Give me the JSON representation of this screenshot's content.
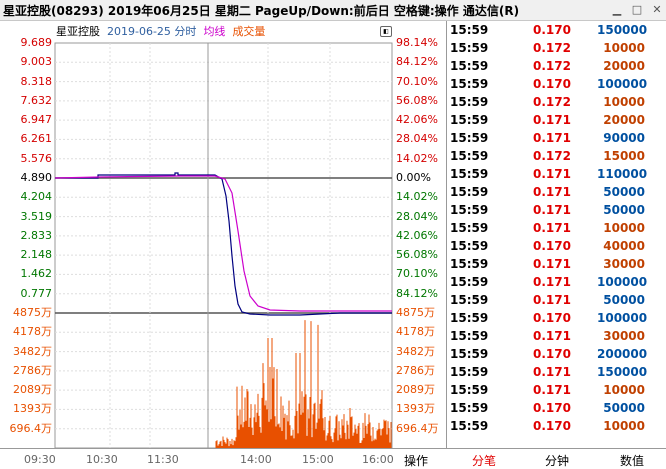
{
  "window": {
    "title": "星亚控股(08293) 2019年06月25日 星期二 PageUp/Down:前后日 空格键:操作 通达信(R)",
    "minimize": "▁",
    "maximize": "□",
    "close": "✕"
  },
  "chart_header": {
    "name": "星亚控股",
    "date": "2019-06-25 分时",
    "avg_label": "均线",
    "vol_label": "成交量",
    "toggle": "◧"
  },
  "colors": {
    "up": "#d40000",
    "down": "#007700",
    "price_line": "#000080",
    "avg_line": "#cc00cc",
    "volume": "#e85000",
    "buy_color": "#0050a0",
    "sell_color": "#c04000"
  },
  "price_axis": {
    "left": [
      "9.689",
      "9.003",
      "8.318",
      "7.632",
      "6.947",
      "6.261",
      "5.576",
      "4.890",
      "4.204",
      "3.519",
      "2.833",
      "2.148",
      "1.462",
      "0.777"
    ],
    "right": [
      "98.14%",
      "84.12%",
      "70.10%",
      "56.08%",
      "42.06%",
      "28.04%",
      "14.02%",
      "0.00%",
      "14.02%",
      "28.04%",
      "42.06%",
      "56.08%",
      "70.10%",
      "84.12%"
    ]
  },
  "volume_axis": [
    "4875万",
    "4178万",
    "3482万",
    "2786万",
    "2089万",
    "1393万",
    "696.4万"
  ],
  "time_axis": [
    "09:30",
    "10:30",
    "11:30",
    "14:00",
    "15:00",
    "16:00"
  ],
  "ticks": [
    {
      "time": "15:59",
      "price": "0.170",
      "vol": "150000",
      "side": "buy"
    },
    {
      "time": "15:59",
      "price": "0.172",
      "vol": "10000",
      "side": "sell"
    },
    {
      "time": "15:59",
      "price": "0.172",
      "vol": "20000",
      "side": "sell"
    },
    {
      "time": "15:59",
      "price": "0.170",
      "vol": "100000",
      "side": "buy"
    },
    {
      "time": "15:59",
      "price": "0.172",
      "vol": "10000",
      "side": "sell"
    },
    {
      "time": "15:59",
      "price": "0.171",
      "vol": "20000",
      "side": "sell"
    },
    {
      "time": "15:59",
      "price": "0.171",
      "vol": "90000",
      "side": "buy"
    },
    {
      "time": "15:59",
      "price": "0.172",
      "vol": "15000",
      "side": "sell"
    },
    {
      "time": "15:59",
      "price": "0.171",
      "vol": "110000",
      "side": "buy"
    },
    {
      "time": "15:59",
      "price": "0.171",
      "vol": "50000",
      "side": "buy"
    },
    {
      "time": "15:59",
      "price": "0.171",
      "vol": "50000",
      "side": "buy"
    },
    {
      "time": "15:59",
      "price": "0.171",
      "vol": "10000",
      "side": "sell"
    },
    {
      "time": "15:59",
      "price": "0.170",
      "vol": "40000",
      "side": "sell"
    },
    {
      "time": "15:59",
      "price": "0.171",
      "vol": "30000",
      "side": "sell"
    },
    {
      "time": "15:59",
      "price": "0.171",
      "vol": "100000",
      "side": "buy"
    },
    {
      "time": "15:59",
      "price": "0.171",
      "vol": "50000",
      "side": "buy"
    },
    {
      "time": "15:59",
      "price": "0.170",
      "vol": "100000",
      "side": "buy"
    },
    {
      "time": "15:59",
      "price": "0.171",
      "vol": "30000",
      "side": "sell"
    },
    {
      "time": "15:59",
      "price": "0.170",
      "vol": "200000",
      "side": "buy"
    },
    {
      "time": "15:59",
      "price": "0.171",
      "vol": "150000",
      "side": "buy"
    },
    {
      "time": "15:59",
      "price": "0.171",
      "vol": "10000",
      "side": "sell"
    },
    {
      "time": "15:59",
      "price": "0.170",
      "vol": "50000",
      "side": "buy"
    },
    {
      "time": "15:59",
      "price": "0.170",
      "vol": "10000",
      "side": "sell"
    }
  ],
  "bottom_tabs": [
    {
      "label": "操作",
      "active": false
    },
    {
      "label": "分笔",
      "active": true
    },
    {
      "label": "分钟",
      "active": false
    },
    {
      "label": "数值",
      "active": false
    }
  ]
}
